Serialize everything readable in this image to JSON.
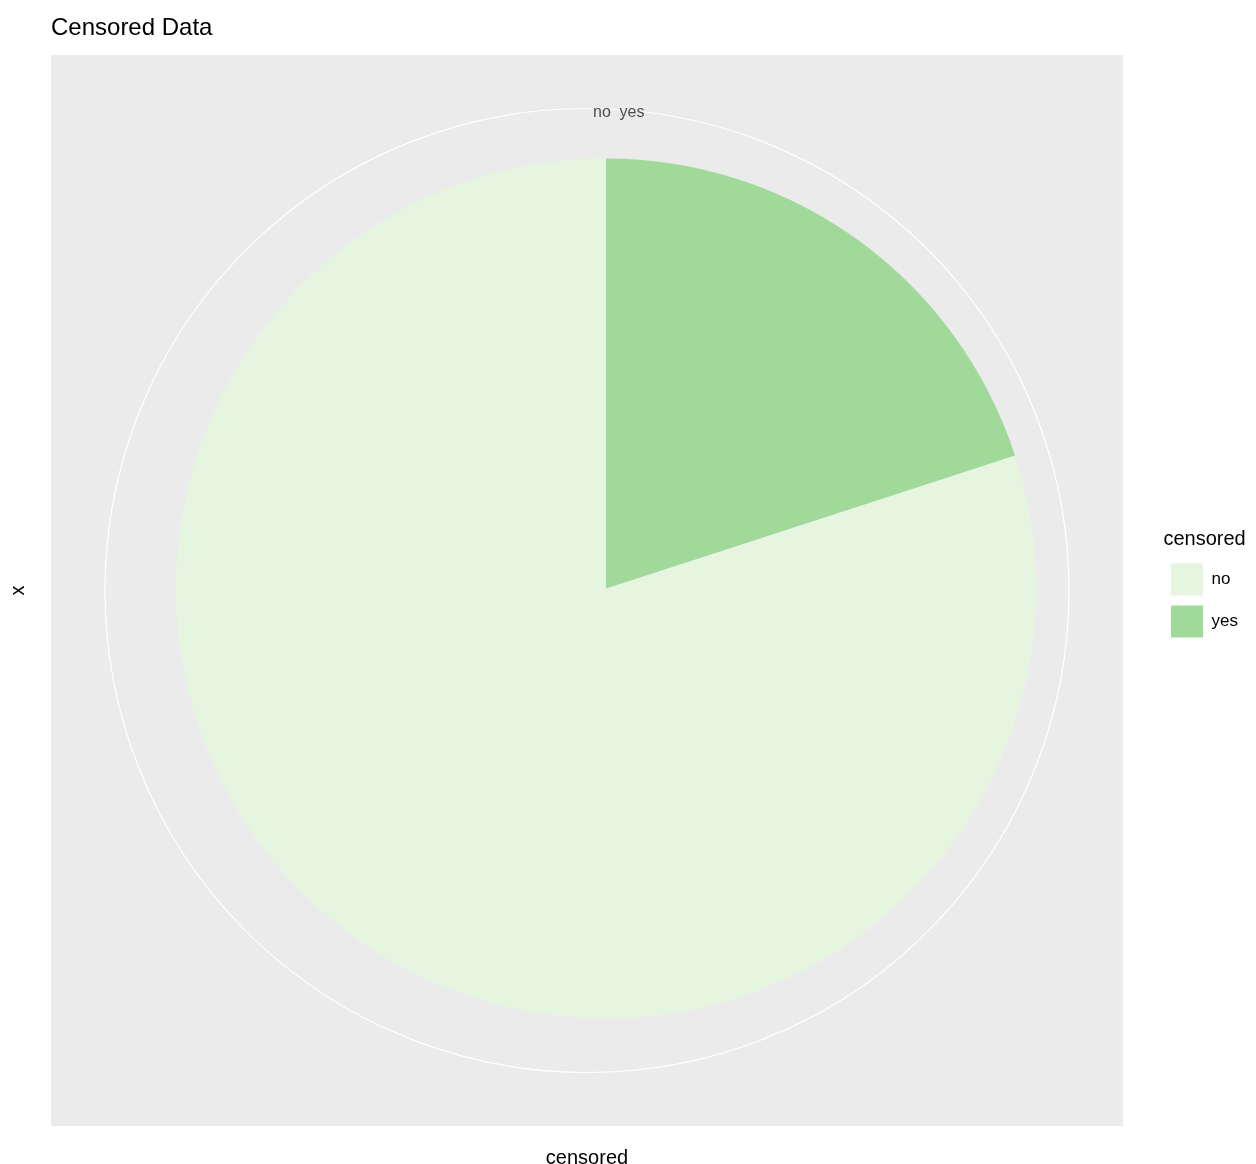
{
  "chart_data": {
    "type": "pie",
    "title": "Censored Data",
    "xlabel": "censored",
    "ylabel": "x",
    "legend_title": "censored",
    "legend": "right",
    "grid": true,
    "categories": [
      "no",
      "yes"
    ],
    "values": [
      80,
      20
    ],
    "colors": [
      "#e5f5e0",
      "#a1d99b"
    ],
    "annotations": [
      "no",
      "yes"
    ]
  }
}
